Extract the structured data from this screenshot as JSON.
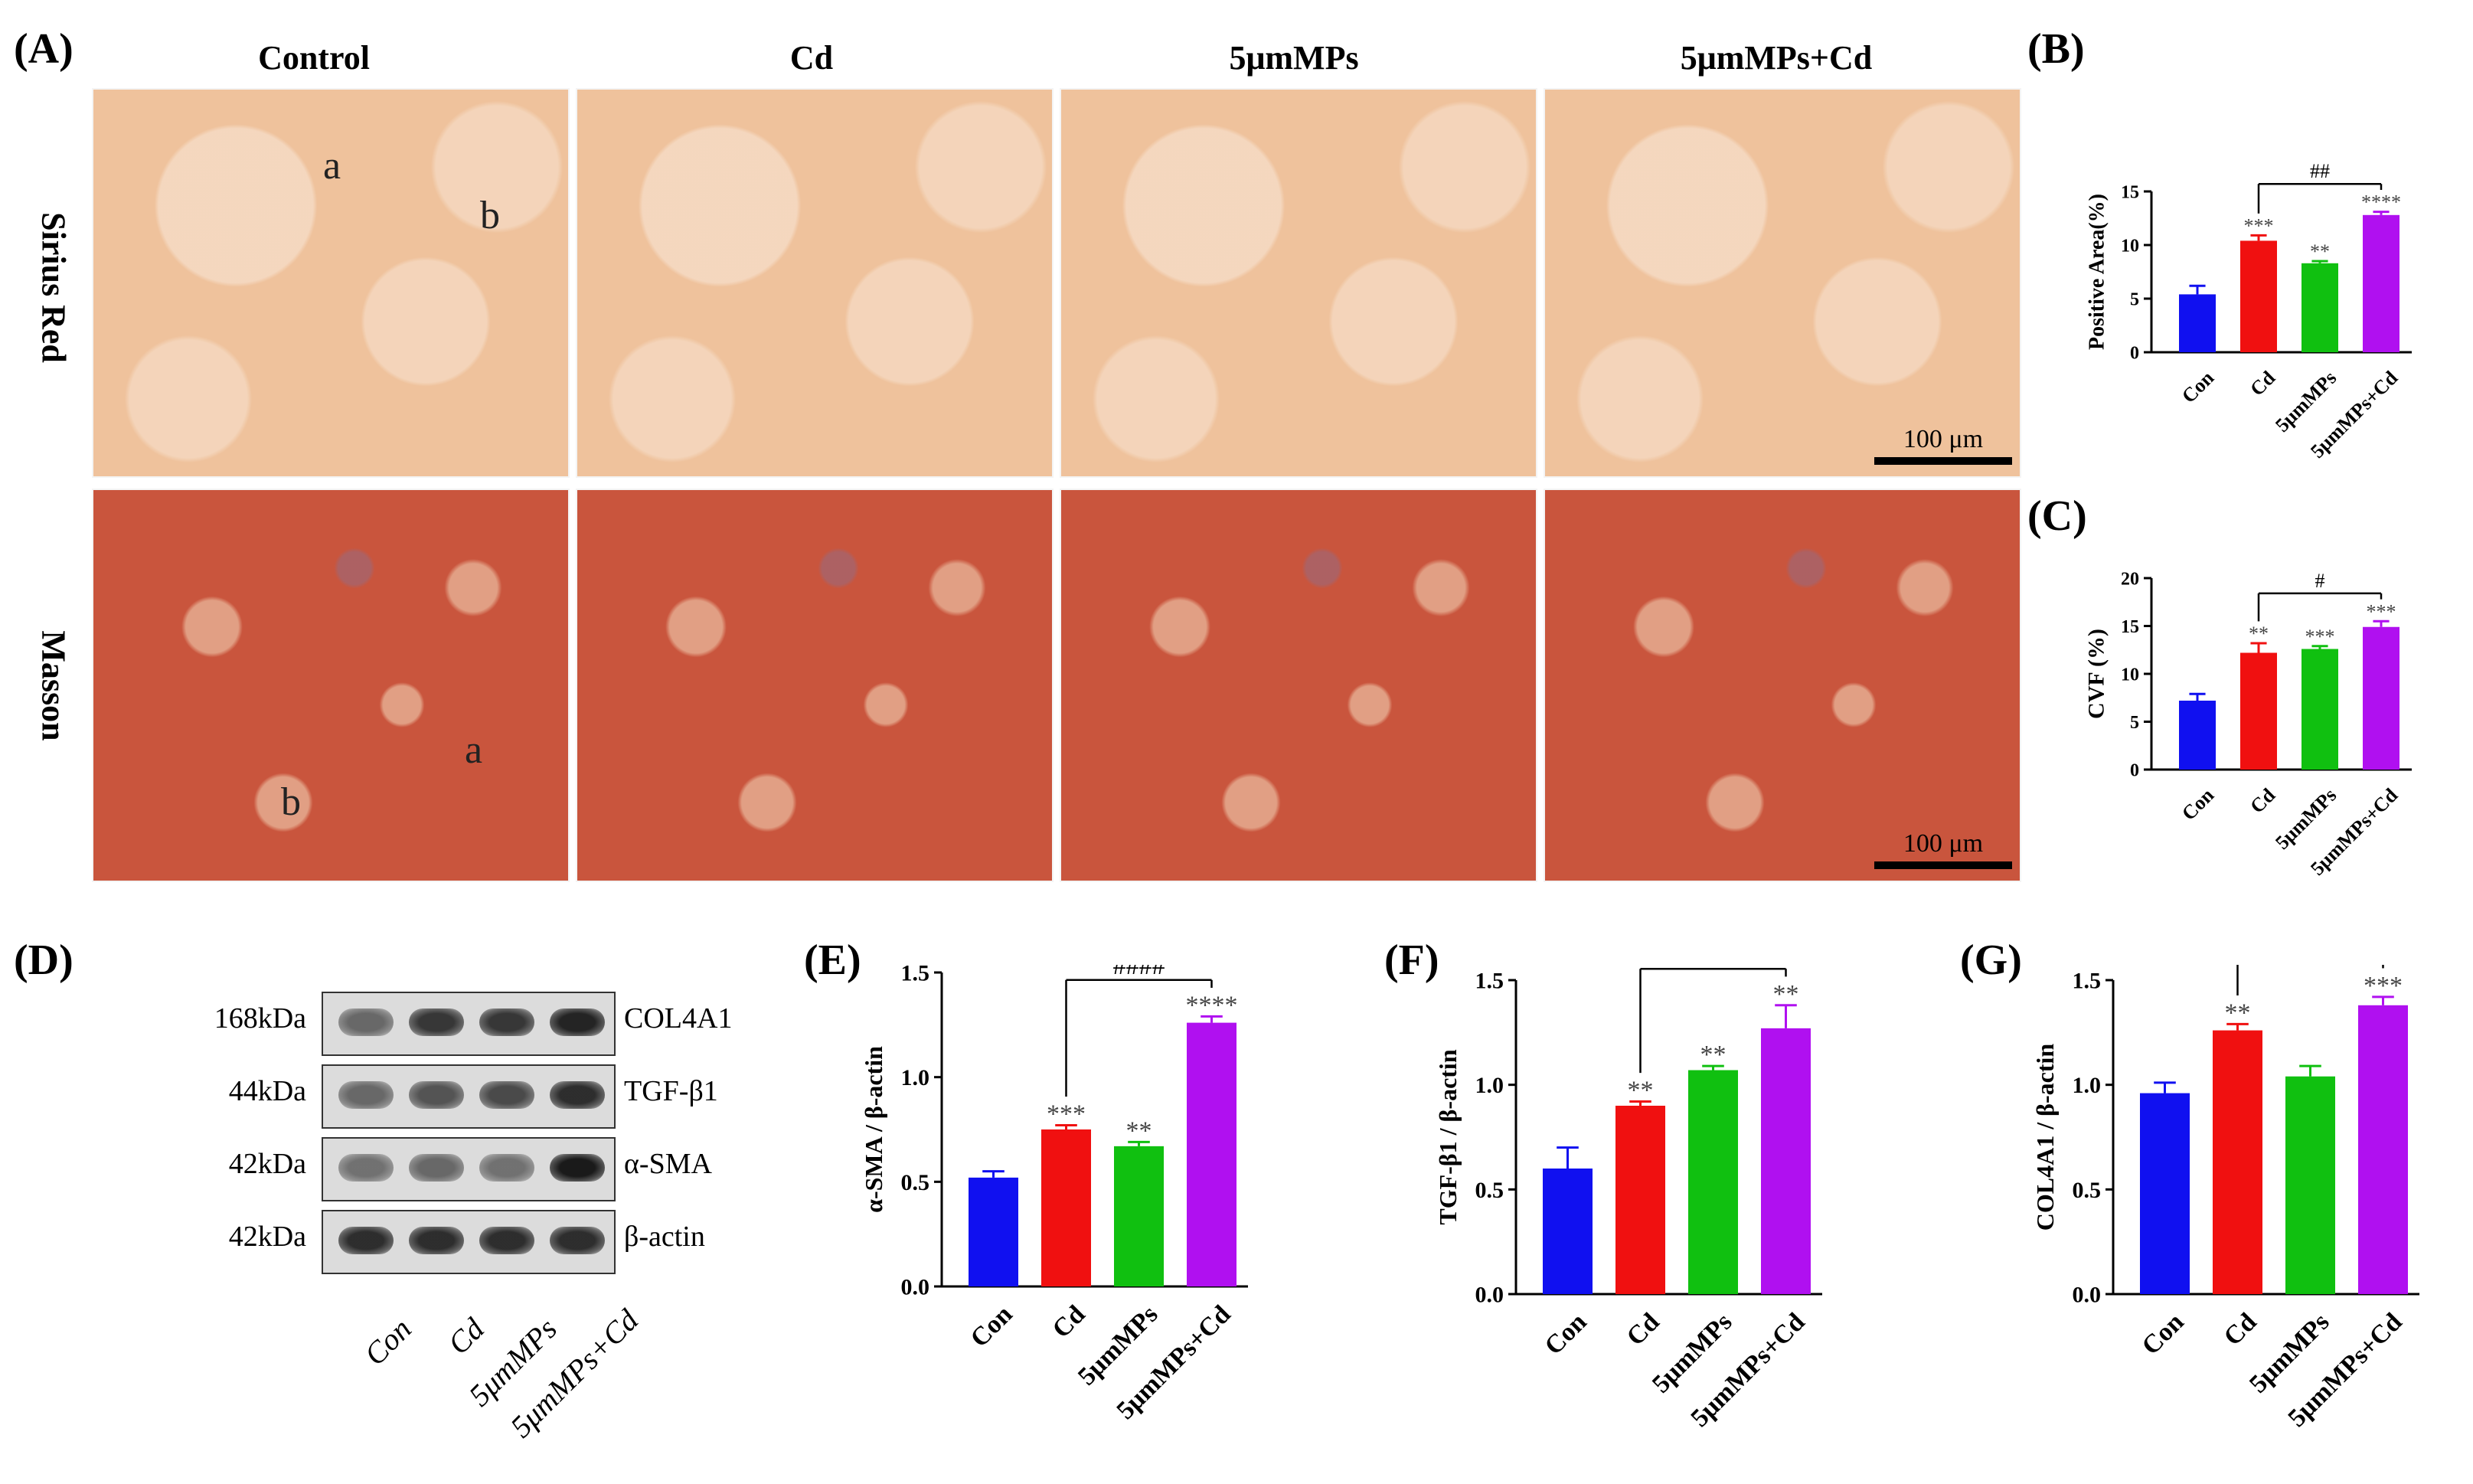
{
  "panel_labels": {
    "A": "(A)",
    "B": "(B)",
    "C": "(C)",
    "D": "(D)",
    "E": "(E)",
    "F": "(F)",
    "G": "(G)"
  },
  "histology": {
    "columns": [
      "Control",
      "Cd",
      "5μmMPs",
      "5μmMPs+Cd"
    ],
    "rows": [
      "Sirius Red",
      "Masson"
    ],
    "marks": {
      "a": "a",
      "b": "b"
    },
    "scale_bar": "100 μm"
  },
  "blot": {
    "rows": [
      {
        "kda": "168kDa",
        "protein": "COL4A1",
        "intensity": [
          0.6,
          0.85,
          0.85,
          0.95
        ]
      },
      {
        "kda": "44kDa",
        "protein": "TGF-β1",
        "intensity": [
          0.6,
          0.7,
          0.75,
          0.9
        ]
      },
      {
        "kda": "42kDa",
        "protein": "α-SMA",
        "intensity": [
          0.55,
          0.6,
          0.55,
          1.0
        ]
      },
      {
        "kda": "42kDa",
        "protein": "β-actin",
        "intensity": [
          0.9,
          0.9,
          0.9,
          0.9
        ]
      }
    ],
    "lanes": [
      "Con",
      "Cd",
      "5μmMPs",
      "5μmMPs+Cd"
    ]
  },
  "colors": {
    "Con": "#1010f0",
    "Cd": "#f01010",
    "5μmMPs": "#10c010",
    "5μmMPs+Cd": "#b010f0"
  },
  "chart_data": [
    {
      "id": "B",
      "type": "bar",
      "categories": [
        "Con",
        "Cd",
        "5μmMPs",
        "5μmMPs+Cd"
      ],
      "values": [
        5.4,
        10.4,
        8.3,
        12.8
      ],
      "errors": [
        0.8,
        0.5,
        0.2,
        0.3
      ],
      "sig": [
        "",
        "***",
        "**",
        "****"
      ],
      "bracket": {
        "from": 1,
        "to": 3,
        "label": "##"
      },
      "ylabel": "Positive Area(%)",
      "ylim": [
        0,
        15
      ],
      "yticks": [
        0,
        5,
        10,
        15
      ],
      "ytick_labels": [
        "0",
        "5",
        "10",
        "15"
      ]
    },
    {
      "id": "C",
      "type": "bar",
      "categories": [
        "Con",
        "Cd",
        "5μmMPs",
        "5μmMPs+Cd"
      ],
      "values": [
        7.2,
        12.2,
        12.6,
        14.9
      ],
      "errors": [
        0.7,
        1.0,
        0.3,
        0.6
      ],
      "sig": [
        "",
        "**",
        "***",
        "***"
      ],
      "bracket": {
        "from": 1,
        "to": 3,
        "label": "#"
      },
      "ylabel": "CVF (%)",
      "ylim": [
        0,
        20
      ],
      "yticks": [
        0,
        5,
        10,
        15,
        20
      ],
      "ytick_labels": [
        "0",
        "5",
        "10",
        "15",
        "20"
      ]
    },
    {
      "id": "E",
      "type": "bar",
      "categories": [
        "Con",
        "Cd",
        "5μmMPs",
        "5μmMPs+Cd"
      ],
      "values": [
        0.52,
        0.75,
        0.67,
        1.26
      ],
      "errors": [
        0.03,
        0.02,
        0.02,
        0.03
      ],
      "sig": [
        "",
        "***",
        "**",
        "****"
      ],
      "bracket": {
        "from": 1,
        "to": 3,
        "label": "####"
      },
      "ylabel": "α-SMA / β-actin",
      "ylim": [
        0,
        1.5
      ],
      "yticks": [
        0,
        0.5,
        1.0,
        1.5
      ],
      "ytick_labels": [
        "0.0",
        "0.5",
        "1.0",
        "1.5"
      ]
    },
    {
      "id": "F",
      "type": "bar",
      "categories": [
        "Con",
        "Cd",
        "5μmMPs",
        "5μmMPs+Cd"
      ],
      "values": [
        0.6,
        0.9,
        1.07,
        1.27
      ],
      "errors": [
        0.1,
        0.02,
        0.02,
        0.11
      ],
      "sig": [
        "",
        "**",
        "**",
        "**"
      ],
      "bracket": {
        "from": 1,
        "to": 3,
        "label": "##"
      },
      "ylabel": "TGF-β1 / β-actin",
      "ylim": [
        0,
        1.5
      ],
      "yticks": [
        0,
        0.5,
        1.0,
        1.5
      ],
      "ytick_labels": [
        "0.0",
        "0.5",
        "1.0",
        "1.5"
      ]
    },
    {
      "id": "G",
      "type": "bar",
      "categories": [
        "Con",
        "Cd",
        "5μmMPs",
        "5μmMPs+Cd"
      ],
      "values": [
        0.96,
        1.26,
        1.04,
        1.38
      ],
      "errors": [
        0.05,
        0.03,
        0.05,
        0.04
      ],
      "sig": [
        "",
        "**",
        "",
        "***"
      ],
      "bracket": {
        "from": 1,
        "to": 3,
        "label": "#"
      },
      "ylabel": "COL4A1 / β-actin",
      "ylim": [
        0,
        1.5
      ],
      "yticks": [
        0,
        0.5,
        1.0,
        1.5
      ],
      "ytick_labels": [
        "0.0",
        "0.5",
        "1.0",
        "1.5"
      ]
    }
  ]
}
